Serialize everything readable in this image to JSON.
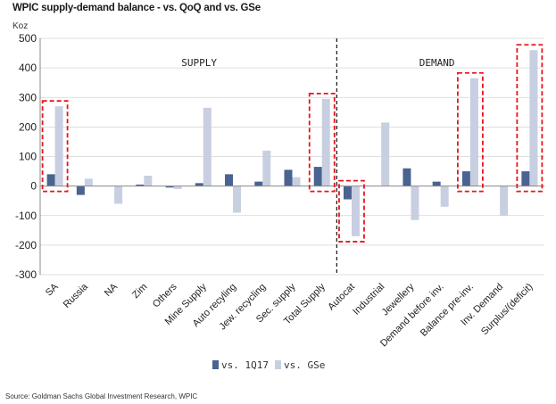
{
  "header": {
    "title": "WPIC supply-demand balance - vs. QoQ and vs. GSe",
    "unit": "Koz",
    "source": "Source: Goldman Sachs Global Investment Research, WPIC"
  },
  "chart_data": {
    "type": "bar",
    "ylim": [
      -300,
      500
    ],
    "yticks": [
      -300,
      -200,
      -100,
      0,
      100,
      200,
      300,
      400,
      500
    ],
    "gridlines": true,
    "legend_placement": "bottom",
    "sections": [
      {
        "label": "SUPPLY",
        "start": 0,
        "end": 9
      },
      {
        "label": "DEMAND",
        "start": 10,
        "end": 16
      }
    ],
    "categories": [
      "SA",
      "Russia",
      "NA",
      "Zim",
      "Others",
      "Mine Supply",
      "Auto recyling",
      "Jew. recycling",
      "Sec. supply",
      "Total Supply",
      "Autocat",
      "Industrial",
      "Jewellery",
      "Demand before inv.",
      "Balance pre-inv.",
      "Inv. Demand",
      "Surplus/(deficit)"
    ],
    "series": [
      {
        "name": "vs. 1Q17",
        "color": "#4a6390",
        "values": [
          40,
          -30,
          0,
          5,
          -5,
          10,
          40,
          15,
          55,
          65,
          -45,
          0,
          60,
          15,
          50,
          0,
          50
        ]
      },
      {
        "name": "vs. GSe",
        "color": "#c8cfe1",
        "values": [
          270,
          25,
          -60,
          35,
          -10,
          265,
          -90,
          120,
          30,
          295,
          -170,
          215,
          -115,
          -70,
          365,
          -100,
          460
        ]
      }
    ],
    "highlight_boxes": [
      "SA",
      "Total Supply",
      "Autocat",
      "Balance pre-inv.",
      "Surplus/(deficit)"
    ],
    "colors": {
      "highlight": "#e8141c",
      "divider": "#111111",
      "axis": "#8a8a8a",
      "grid": "#d4d4d4"
    }
  }
}
